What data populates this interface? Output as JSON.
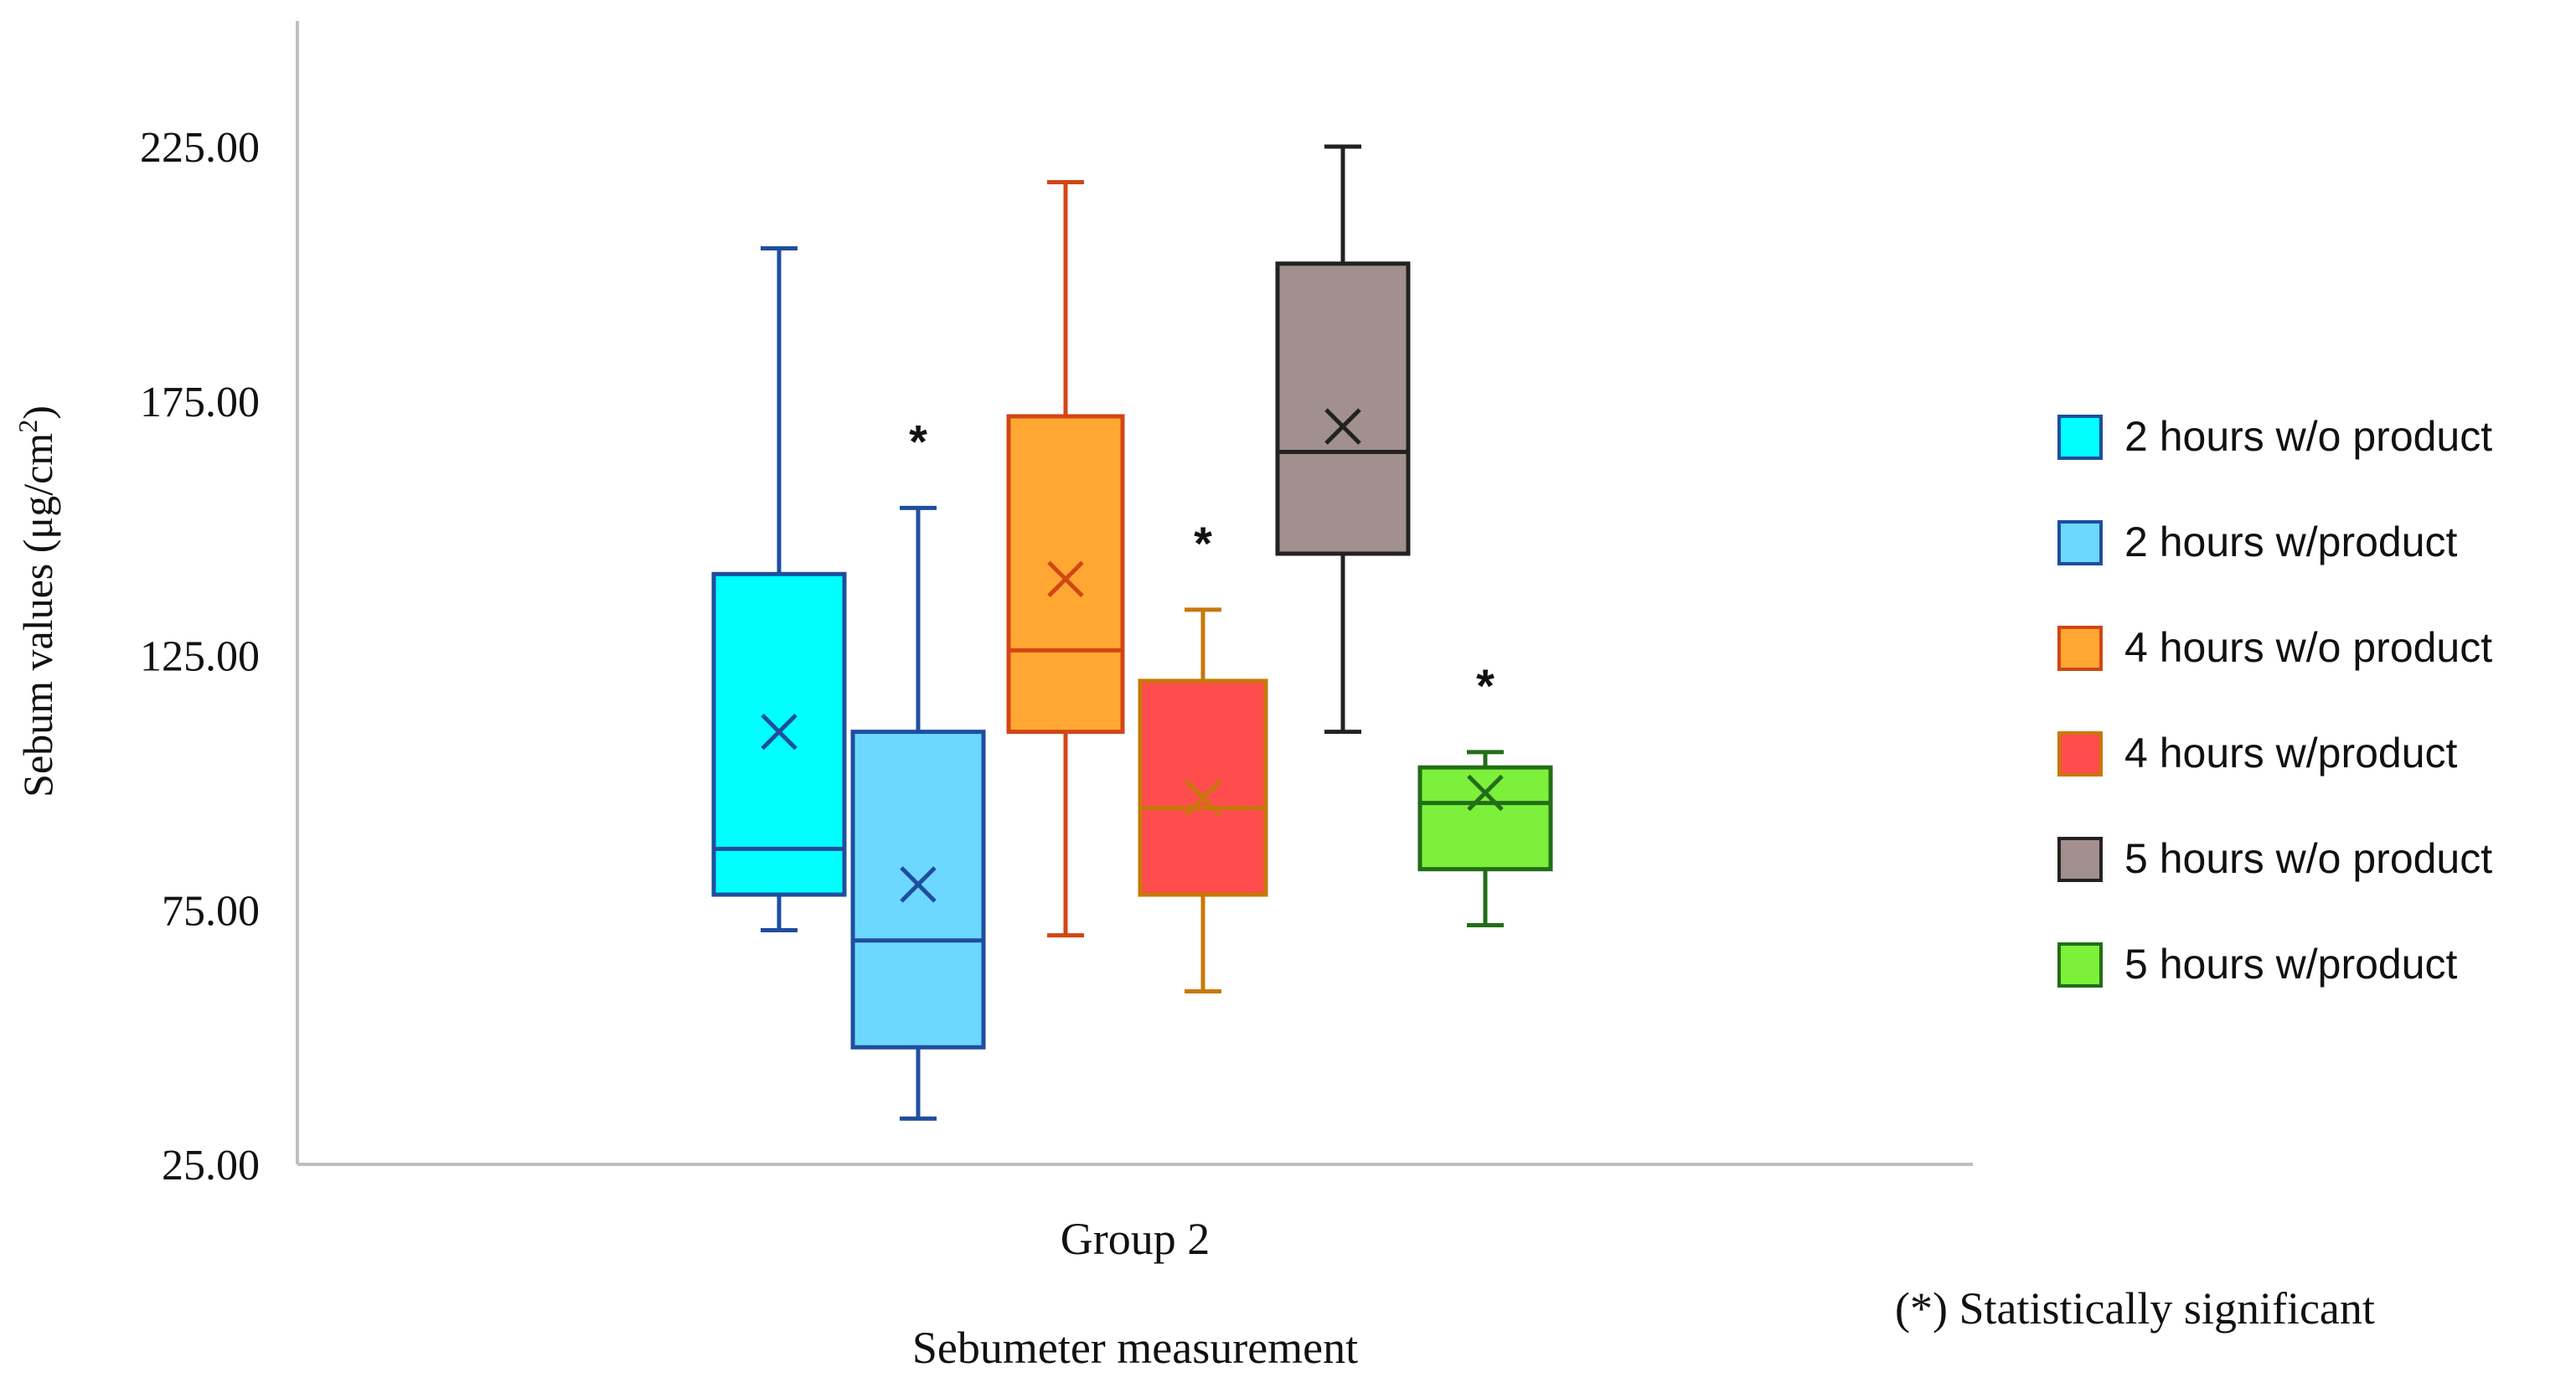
{
  "chart_data": {
    "type": "box",
    "ylabel": "Sebum values (μg/cm",
    "ylabel_sup": "2",
    "ylabel_close": ")",
    "xlabel": "Sebumeter measurement",
    "categories": [
      "Group 2"
    ],
    "ylim": [
      25,
      247
    ],
    "yticks": [
      {
        "value": 25,
        "label": "25.00"
      },
      {
        "value": 75,
        "label": "75.00"
      },
      {
        "value": 125,
        "label": "125.00"
      },
      {
        "value": 175,
        "label": "175.00"
      },
      {
        "value": 225,
        "label": "225.00"
      }
    ],
    "grid": false,
    "legend_position": "right",
    "note": "(*) Statistically significant",
    "series": [
      {
        "name": "2 hours w/o product",
        "fill": "#00FFFF",
        "stroke": "#1F4E9E",
        "min": 71,
        "q1": 78,
        "median": 87,
        "q3": 141,
        "max": 205,
        "mean": 110,
        "significant": false
      },
      {
        "name": "2 hours w/product",
        "fill": "#6CD8FF",
        "stroke": "#1F4E9E",
        "min": 34,
        "q1": 48,
        "median": 69,
        "q3": 110,
        "max": 154,
        "mean": 80,
        "significant": true
      },
      {
        "name": "4 hours w/o product",
        "fill": "#FFA733",
        "stroke": "#D24614",
        "min": 70,
        "q1": 110,
        "median": 126,
        "q3": 172,
        "max": 218,
        "mean": 140,
        "significant": false
      },
      {
        "name": "4 hours w/product",
        "fill": "#FF4C4C",
        "stroke": "#C8780A",
        "min": 59,
        "q1": 78,
        "median": 95,
        "q3": 120,
        "max": 134,
        "mean": 97,
        "significant": true
      },
      {
        "name": "5 hours w/o product",
        "fill": "#A1908E",
        "stroke": "#222222",
        "min": 110,
        "q1": 145,
        "median": 165,
        "q3": 202,
        "max": 225,
        "mean": 170,
        "significant": false
      },
      {
        "name": "5 hours w/product",
        "fill": "#7CF03A",
        "stroke": "#226E18",
        "min": 72,
        "q1": 83,
        "median": 96,
        "q3": 103,
        "max": 106,
        "mean": 98,
        "significant": true
      }
    ]
  }
}
